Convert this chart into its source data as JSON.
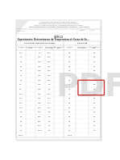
{
  "title_line1": "UNIVERSIDADE FEDERAL DE OURO PRETO",
  "title_line2": "INSTITUTO DE CIENCIAS EXATAS E BIOLOGICAS",
  "title_line3": "Departamento de Quimica | Laboratorio de Quimica Geral",
  "title_line4": "Prof. responsavel: FULANO | Laboratorio: Turma X | Ano: 2024",
  "label_nome": "NOME(S):",
  "label_turma": "TURMA:",
  "label_data": "DATA:",
  "section": "QUIMICA",
  "exp_title": "Experimento: Determinacao da Temperatura de Fusao de So...",
  "group_header_left": "FUSAO DE SUBSTANCIAS PURAS",
  "group_header_right": "FUSAO DE",
  "col_headers_left": [
    "Amostra\n1",
    "Temperatura\nInicial",
    "Amostra\n2",
    "Temperatura\nde Fusao",
    "Temperatura\nFinal"
  ],
  "col_headers_right": [
    "Amostra\n1",
    "Temperatura\nde Fusao",
    "Temperatura\nFinal"
  ],
  "rows_left": [
    [
      "10,0",
      "",
      "10,0",
      "10,0",
      ""
    ],
    [
      "0,5",
      "",
      "0,55",
      "0,55",
      ""
    ],
    [
      "0,5",
      "",
      "0,55",
      "0,55",
      ""
    ],
    [
      "0,5",
      "",
      "0,55",
      "0,55",
      ""
    ],
    [
      "0,5",
      "",
      "0,55",
      "0,55",
      ""
    ],
    [
      "0,5",
      "",
      "0,55",
      "0,55",
      ""
    ],
    [
      "0,5",
      "",
      "0,55",
      "0,55",
      ""
    ],
    [
      "4,0",
      "",
      "0,55",
      "4,0",
      ""
    ],
    [
      "4,0",
      "",
      "0,55",
      "4,0",
      ""
    ],
    [
      "10,0",
      "",
      "0,55",
      "10,0",
      ""
    ],
    [
      "10,0",
      "",
      "0,55",
      "10,0",
      ""
    ],
    [
      "10,0",
      "",
      "0,55",
      "10,0",
      ""
    ],
    [
      "10,0",
      "",
      "5,55",
      "10,0",
      ""
    ],
    [
      "5,0",
      "",
      "5,55",
      "5,0",
      ""
    ],
    [
      "5,0",
      "",
      "5,55",
      "5,0",
      ""
    ],
    [
      "5,0",
      "",
      "5,55",
      "5,0",
      ""
    ],
    [
      "5,0",
      "",
      "5,75",
      "5,0",
      ""
    ],
    [
      "5,0",
      "",
      "5,205",
      "5,0",
      ""
    ],
    [
      "MEDIA",
      "",
      "",
      "",
      ""
    ]
  ],
  "rows_right": [
    [
      "0,5",
      "",
      "0,5"
    ],
    [
      "0,5",
      "",
      "0,5"
    ],
    [
      "0,5",
      "",
      "0,5"
    ],
    [
      "0,5",
      "",
      "0,5"
    ],
    [
      "0,5",
      "",
      "0,5"
    ],
    [
      "0,5",
      "",
      "0,5"
    ],
    [
      "0,5",
      "",
      "0,5"
    ],
    [
      "0,5",
      "",
      "0,5"
    ],
    [
      "0,5",
      "",
      "0,5"
    ],
    [
      "0,5",
      "",
      "0,5"
    ],
    [
      "0,5",
      "",
      "0,5"
    ],
    [
      "0,5",
      "",
      "0,5"
    ],
    [
      "0,5",
      "",
      "0,5"
    ],
    [
      "0,5",
      "",
      "0,5"
    ],
    [
      "0,5",
      "",
      "0,5"
    ],
    [
      "0,5",
      "",
      "0,5"
    ],
    [
      "0,5",
      "",
      "0,5"
    ],
    [
      "0,5",
      "",
      "0,5"
    ],
    [
      "0,105",
      "",
      ""
    ]
  ],
  "bg_color": "#ffffff",
  "border_color": "#999999",
  "text_color": "#333333",
  "gray_text": "#aaaaaa"
}
